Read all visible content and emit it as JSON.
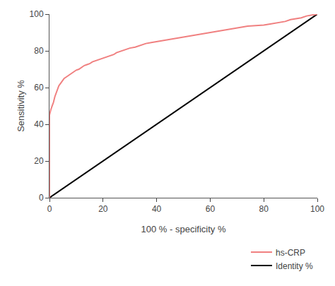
{
  "chart_data": {
    "type": "line",
    "xlabel": "100 % - specificity %",
    "ylabel": "Sensitivity %",
    "xlim": [
      0,
      100
    ],
    "ylim": [
      0,
      100
    ],
    "xticks": [
      0,
      20,
      40,
      60,
      80,
      100
    ],
    "yticks": [
      0,
      20,
      40,
      60,
      80,
      100
    ],
    "grid": false,
    "legend": "lower right",
    "series": [
      {
        "name": "hs-CRP",
        "color": "#f08080",
        "x": [
          0,
          0,
          0,
          0.5,
          1.0,
          1.5,
          2.0,
          2.5,
          3.0,
          3.5,
          4.0,
          4.5,
          5.0,
          5.5,
          6.0,
          6.5,
          7.0,
          7.5,
          8.0,
          8.5,
          9.0,
          9.5,
          10.0,
          11.0,
          12.0,
          13.0,
          14.0,
          15.0,
          16.0,
          17.0,
          18.0,
          19.0,
          20.0,
          21.0,
          22.0,
          23.0,
          24.0,
          25.0,
          26.0,
          27.0,
          28.0,
          29.0,
          30.0,
          32.0,
          34.0,
          36.0,
          38.0,
          40.0,
          42.0,
          44.0,
          46.0,
          48.0,
          50.0,
          52.0,
          54.0,
          56.0,
          58.0,
          60.0,
          62.0,
          64.0,
          66.0,
          68.0,
          70.0,
          72.0,
          74.0,
          76.0,
          78.0,
          80.0,
          82.0,
          84.0,
          86.0,
          88.0,
          90.0,
          92.0,
          94.0,
          96.0,
          98.0,
          100.0
        ],
        "values": [
          0,
          30,
          45,
          48,
          50,
          52,
          55,
          57,
          59,
          61,
          62,
          63,
          64,
          65,
          65.5,
          66,
          66.5,
          67,
          67.5,
          68,
          68.5,
          69,
          69.5,
          70,
          71,
          72,
          72.5,
          73,
          74,
          74.5,
          75,
          75.5,
          76,
          76.5,
          77,
          77.5,
          78,
          79,
          79.5,
          80,
          80.5,
          81,
          81.5,
          82,
          83,
          84,
          84.5,
          85,
          85.5,
          86,
          86.5,
          87,
          87.5,
          88,
          88.5,
          89,
          89.5,
          90,
          90.5,
          91,
          91.5,
          92,
          92.5,
          93,
          93.5,
          93.7,
          93.9,
          94.0,
          94.5,
          95,
          95.5,
          96,
          97,
          97.5,
          98,
          99,
          99.5,
          100
        ]
      },
      {
        "name": "Identity %",
        "color": "#000000",
        "x": [
          0,
          100
        ],
        "values": [
          0,
          100
        ]
      }
    ]
  }
}
